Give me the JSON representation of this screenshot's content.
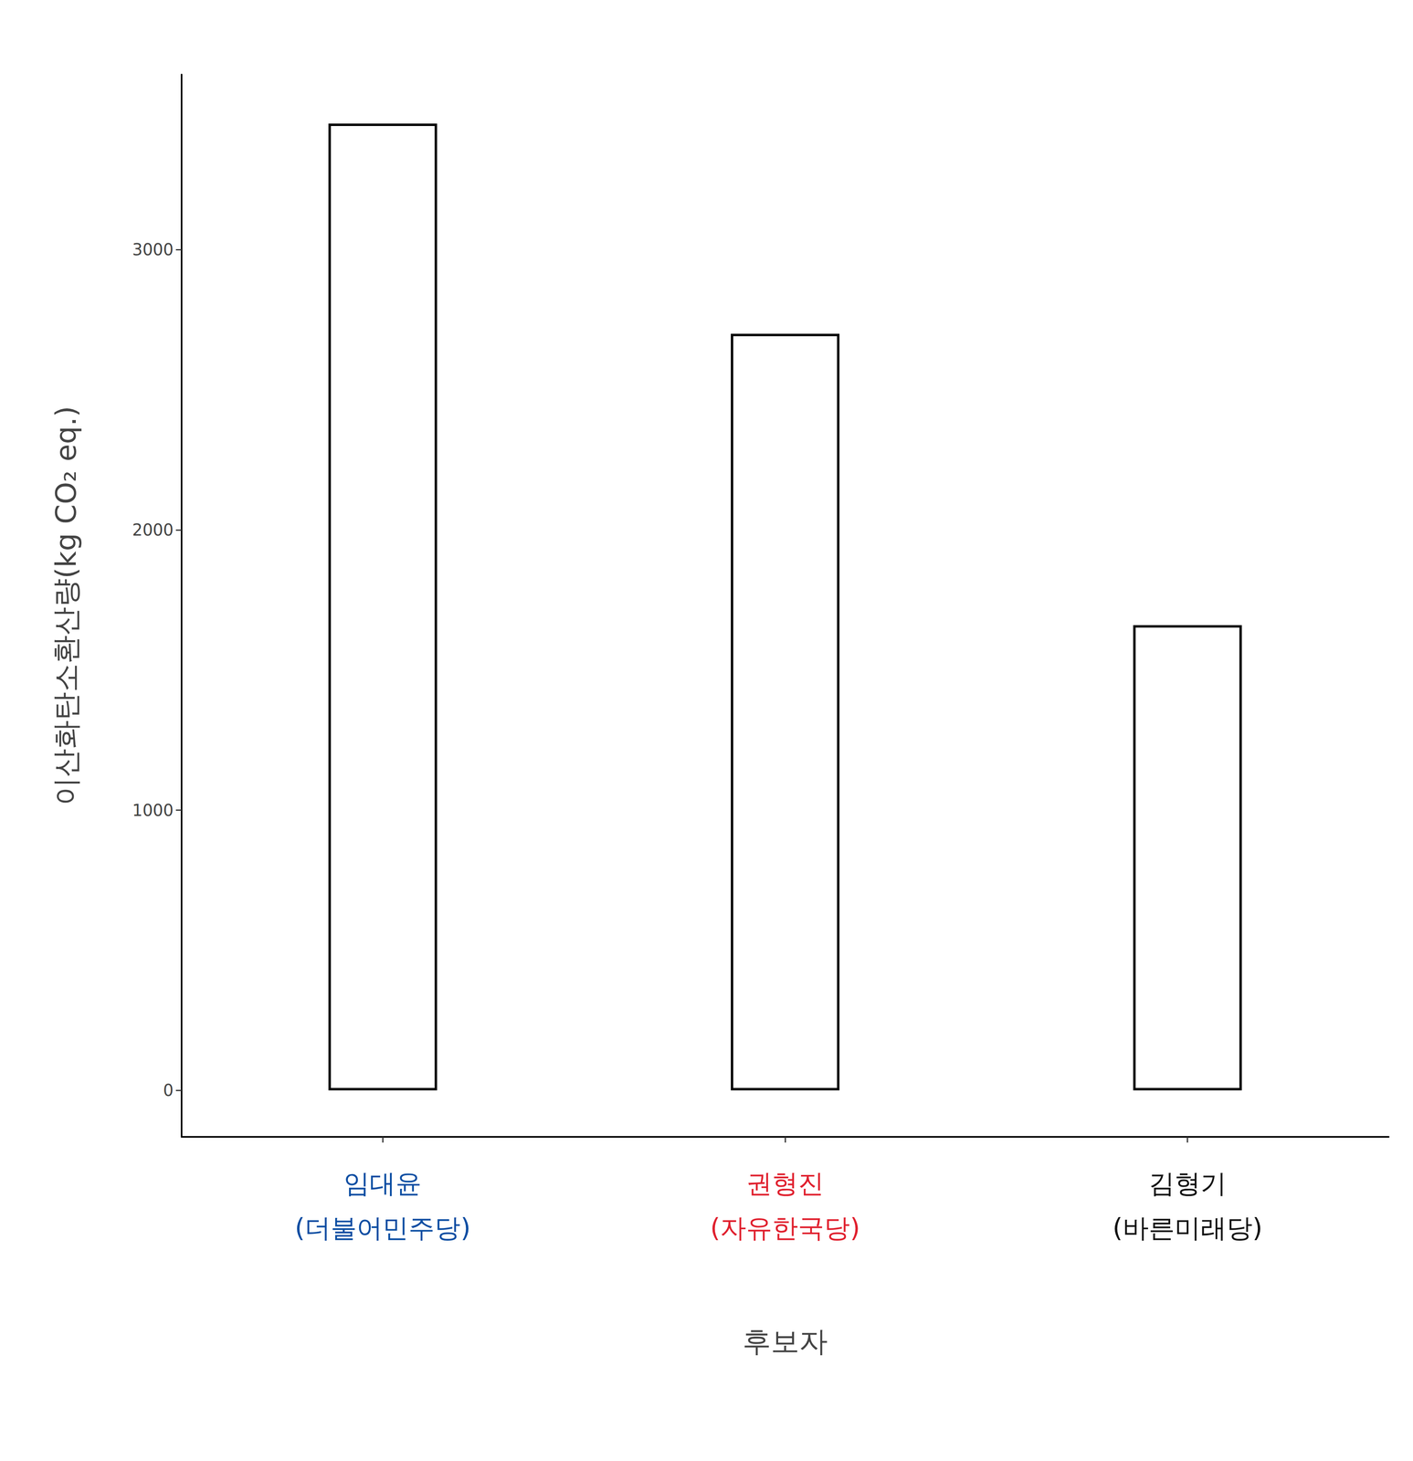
{
  "chart_data": {
    "type": "bar",
    "x_label": "후보자",
    "y_label": "이산화탄소환산량(kg CO₂ eq.)",
    "categories": [
      "임대윤\n(더불어민주당)",
      "권형진\n(자유한국당)",
      "김형기\n(바른미래당)"
    ],
    "values": [
      3450,
      2700,
      1660
    ],
    "colors": [
      "#0a4da2",
      "#e0202e",
      "#111111"
    ],
    "ylim": [
      -166,
      3625
    ],
    "yticks": [
      0,
      1000,
      2000,
      3000
    ],
    "grid": false
  }
}
